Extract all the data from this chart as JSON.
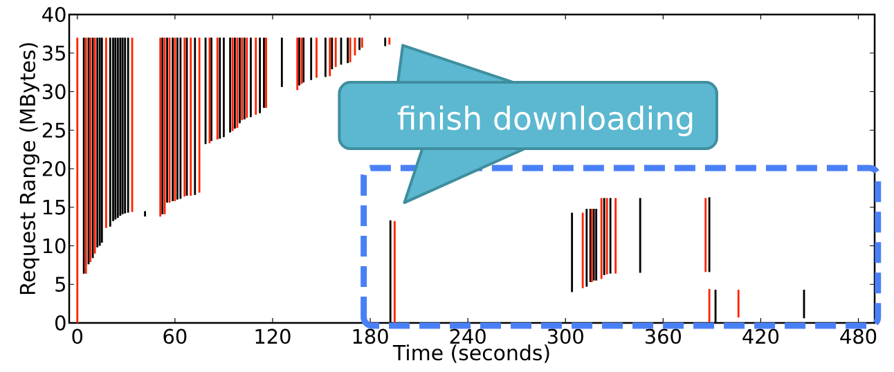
{
  "chart_data": {
    "type": "bar",
    "xlabel": "Time (seconds)",
    "ylabel": "Request Range (MBytes)",
    "xlim": [
      -5,
      490
    ],
    "ylim": [
      0,
      40
    ],
    "xticks": [
      0,
      60,
      120,
      180,
      240,
      300,
      360,
      420,
      480
    ],
    "yticks": [
      0,
      5,
      10,
      15,
      20,
      25,
      30,
      35,
      40
    ],
    "annotations": [
      "finish downloading"
    ],
    "series": [
      {
        "color": "#000000",
        "x": [
          4,
          6.9,
          9.5,
          12.3,
          13.8,
          15.1,
          20.2,
          22,
          23.4,
          24.9,
          26.4,
          27.8,
          29.3,
          31.2,
          41.6,
          52.3,
          55.2,
          58.6,
          61.5,
          63.4,
          67.3,
          72.3,
          78.8,
          82.4,
          87.6,
          90,
          93.9,
          96.8,
          99.8,
          102.7,
          106.6,
          112.2,
          114.7,
          125.7,
          136.4,
          139,
          143.7,
          152.5,
          156.5,
          162.1,
          166.2,
          173.4,
          189.2,
          192.4,
          304,
          313,
          315.3,
          317.4,
          318.9,
          323.8,
          327.6,
          345.9,
          388.4,
          392.2,
          446.6
        ],
        "base": [
          6.4,
          7.6,
          8.4,
          9.8,
          10.0,
          10.4,
          12.5,
          13.2,
          13.4,
          13.6,
          13.9,
          14.1,
          14.2,
          14.3,
          13.8,
          14.1,
          15.6,
          15.8,
          16,
          16.1,
          16.5,
          16.6,
          23.2,
          23.6,
          23.9,
          24.1,
          24.7,
          25.2,
          25.9,
          26.4,
          26.7,
          27.2,
          27.9,
          30.6,
          30.8,
          31.2,
          31.5,
          31.9,
          32.9,
          33.5,
          33.7,
          35.4,
          35.9,
          0,
          4.0,
          4.7,
          5.3,
          5.5,
          5.5,
          6.2,
          6.4,
          6.5,
          6.6,
          0,
          0.6
        ],
        "values": [
          30.6,
          29.4,
          28.6,
          27.2,
          27.0,
          26.6,
          24.5,
          23.8,
          23.6,
          23.4,
          23.1,
          22.9,
          22.8,
          22.7,
          0.7,
          22.9,
          21.4,
          21.2,
          21,
          20.9,
          20.5,
          20.4,
          13.8,
          13.4,
          13.1,
          12.9,
          12.3,
          11.8,
          11.1,
          10.6,
          10.3,
          9.8,
          9.1,
          6.4,
          6.2,
          5.8,
          5.5,
          5.1,
          4.1,
          3.5,
          3.3,
          1.6,
          1.1,
          13.3,
          10.3,
          10.1,
          9.5,
          9.3,
          9.3,
          10.0,
          9.8,
          9.7,
          9.7,
          4.3,
          3.7
        ]
      },
      {
        "color": "#ff2200",
        "x": [
          0,
          5.3,
          8,
          10.8,
          17.7,
          33.7,
          51,
          53.7,
          56.7,
          60,
          65.9,
          69.7,
          75,
          81.3,
          86.1,
          95.4,
          98.3,
          101.2,
          104.2,
          109.7,
          116,
          135.2,
          137.9,
          147,
          155.2,
          158.8,
          167.7,
          170.6,
          175,
          191.8,
          195,
          310.6,
          316.2,
          322.1,
          325.5,
          330.8,
          386.1,
          388.4,
          406.3
        ],
        "base": [
          0,
          6.4,
          7.9,
          9.0,
          12.3,
          14.4,
          13.8,
          14.1,
          15.6,
          15.8,
          16.4,
          16.5,
          16.9,
          23.3,
          23.8,
          24.9,
          25.3,
          26.3,
          26.6,
          27.0,
          27.9,
          30.2,
          31.0,
          31.8,
          32.0,
          33.2,
          33.8,
          34.7,
          35.7,
          36.1,
          0,
          4.5,
          5.3,
          5.7,
          6.3,
          6.4,
          6.6,
          0.1,
          0.7
        ],
        "values": [
          37,
          30.6,
          29.1,
          28.0,
          24.7,
          22.6,
          23.2,
          22.9,
          21.4,
          21.2,
          20.6,
          20.5,
          20.1,
          13.7,
          13.2,
          12.1,
          11.7,
          10.7,
          10.4,
          10.0,
          9.1,
          6.8,
          6.0,
          5.2,
          5.0,
          3.8,
          3.2,
          2.3,
          1.3,
          0.9,
          13.2,
          9.8,
          9.5,
          10.5,
          9.9,
          9.8,
          9.6,
          4.3,
          3.6
        ]
      }
    ]
  }
}
